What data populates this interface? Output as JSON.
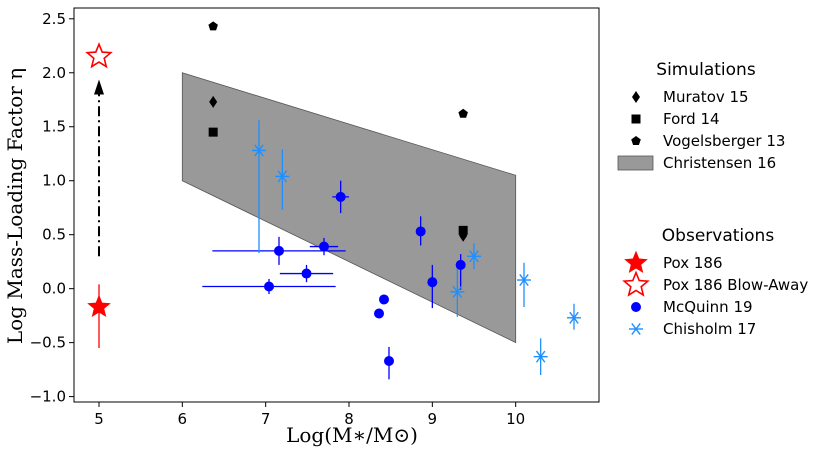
{
  "chart_data": {
    "type": "scatter",
    "xlabel": "Log(M∗/M⊙)",
    "ylabel": "Log Mass-Loading Factor η",
    "xlim": [
      4.7,
      11.0
    ],
    "ylim": [
      -1.05,
      2.6
    ],
    "xticks": [
      5,
      6,
      7,
      8,
      9,
      10
    ],
    "xtick_labels": [
      "5",
      "6",
      "7",
      "8",
      "9",
      "10"
    ],
    "yticks": [
      -1.0,
      -0.5,
      0.0,
      0.5,
      1.0,
      1.5,
      2.0,
      2.5
    ],
    "ytick_labels": [
      "−1.0",
      "−0.5",
      "0.0",
      "0.5",
      "1.0",
      "1.5",
      "2.0",
      "2.5"
    ],
    "colors": {
      "pox": "#ff0000",
      "mcquinn": "#0000ff",
      "chisholm": "#1f8fff",
      "band_fill": "#808080",
      "black": "#000000"
    },
    "legend_simulations": {
      "title": "Simulations",
      "entries": [
        "Muratov 15",
        "Ford 14",
        "Vogelsberger 13",
        "Christensen 16"
      ]
    },
    "legend_observations": {
      "title": "Observations",
      "entries": [
        "Pox 186",
        "Pox 186 Blow-Away",
        "McQuinn 19",
        "Chisholm 17"
      ]
    },
    "series": [
      {
        "name": "Muratov 15",
        "marker": "diamond",
        "points": [
          {
            "x": 6.37,
            "y": 1.73
          },
          {
            "x": 9.37,
            "y": 0.49
          }
        ]
      },
      {
        "name": "Ford 14",
        "marker": "square",
        "points": [
          {
            "x": 6.37,
            "y": 1.45
          },
          {
            "x": 9.37,
            "y": 0.54
          }
        ]
      },
      {
        "name": "Vogelsberger 13",
        "marker": "pentagon",
        "points": [
          {
            "x": 6.37,
            "y": 2.43
          },
          {
            "x": 9.37,
            "y": 1.62
          }
        ]
      },
      {
        "name": "Christensen 16",
        "type": "band",
        "polygon": [
          [
            6.0,
            2.0
          ],
          [
            10.0,
            1.05
          ],
          [
            10.0,
            -0.5
          ],
          [
            6.0,
            1.0
          ]
        ]
      },
      {
        "name": "Pox 186",
        "marker": "star-filled",
        "points": [
          {
            "x": 5.0,
            "y": -0.17,
            "yerr_lo": 0.38,
            "yerr_hi": 0.21
          }
        ]
      },
      {
        "name": "Pox 186 Blow-Away",
        "marker": "star-open",
        "points": [
          {
            "x": 5.0,
            "y": 2.15
          }
        ]
      },
      {
        "name": "McQuinn 19",
        "marker": "circle",
        "points": [
          {
            "x": 7.04,
            "y": 0.02,
            "xerr_lo": 0.8,
            "xerr_hi": 0.8,
            "yerr_lo": 0.07,
            "yerr_hi": 0.07
          },
          {
            "x": 7.16,
            "y": 0.35,
            "xerr_lo": 0.8,
            "xerr_hi": 0.8,
            "yerr_lo": 0.13,
            "yerr_hi": 0.13
          },
          {
            "x": 7.49,
            "y": 0.14,
            "xerr_lo": 0.32,
            "xerr_hi": 0.32,
            "yerr_lo": 0.08,
            "yerr_hi": 0.08
          },
          {
            "x": 7.7,
            "y": 0.39,
            "xerr_lo": 0.17,
            "xerr_hi": 0.17,
            "yerr_lo": 0.08,
            "yerr_hi": 0.08
          },
          {
            "x": 7.9,
            "y": 0.85,
            "xerr_lo": 0.1,
            "xerr_hi": 0.1,
            "yerr_lo": 0.15,
            "yerr_hi": 0.15
          },
          {
            "x": 8.36,
            "y": -0.23,
            "xerr_lo": 0.03,
            "xerr_hi": 0.03,
            "yerr_lo": 0.0,
            "yerr_hi": 0.0
          },
          {
            "x": 8.42,
            "y": -0.1,
            "xerr_lo": 0.0,
            "xerr_hi": 0.0,
            "yerr_lo": 0.0,
            "yerr_hi": 0.0
          },
          {
            "x": 8.48,
            "y": -0.67,
            "xerr_lo": 0.0,
            "xerr_hi": 0.0,
            "yerr_lo": 0.17,
            "yerr_hi": 0.13
          },
          {
            "x": 8.86,
            "y": 0.53,
            "xerr_lo": 0.0,
            "xerr_hi": 0.0,
            "yerr_lo": 0.13,
            "yerr_hi": 0.14
          },
          {
            "x": 9.0,
            "y": 0.06,
            "xerr_lo": 0.0,
            "xerr_hi": 0.0,
            "yerr_lo": 0.24,
            "yerr_hi": 0.16
          },
          {
            "x": 9.34,
            "y": 0.22,
            "xerr_lo": 0.0,
            "xerr_hi": 0.0,
            "yerr_lo": 0.23,
            "yerr_hi": 0.1
          }
        ]
      },
      {
        "name": "Chisholm 17",
        "marker": "x-star",
        "points": [
          {
            "x": 6.92,
            "y": 1.28,
            "yerr_lo": 0.95,
            "yerr_hi": 0.28
          },
          {
            "x": 7.2,
            "y": 1.04,
            "yerr_lo": 0.31,
            "yerr_hi": 0.25
          },
          {
            "x": 9.3,
            "y": -0.03,
            "yerr_lo": 0.23,
            "yerr_hi": 0.27
          },
          {
            "x": 9.5,
            "y": 0.3,
            "yerr_lo": 0.12,
            "yerr_hi": 0.12
          },
          {
            "x": 10.1,
            "y": 0.08,
            "yerr_lo": 0.25,
            "yerr_hi": 0.16
          },
          {
            "x": 10.3,
            "y": -0.63,
            "yerr_lo": 0.17,
            "yerr_hi": 0.17
          },
          {
            "x": 10.7,
            "y": -0.27,
            "yerr_lo": 0.11,
            "yerr_hi": 0.13
          }
        ]
      }
    ],
    "annotations": [
      {
        "type": "arrow",
        "style": "dash-dot",
        "from": {
          "x": 5.0,
          "y": 0.3
        },
        "to": {
          "x": 5.0,
          "y": 1.9
        }
      }
    ]
  }
}
